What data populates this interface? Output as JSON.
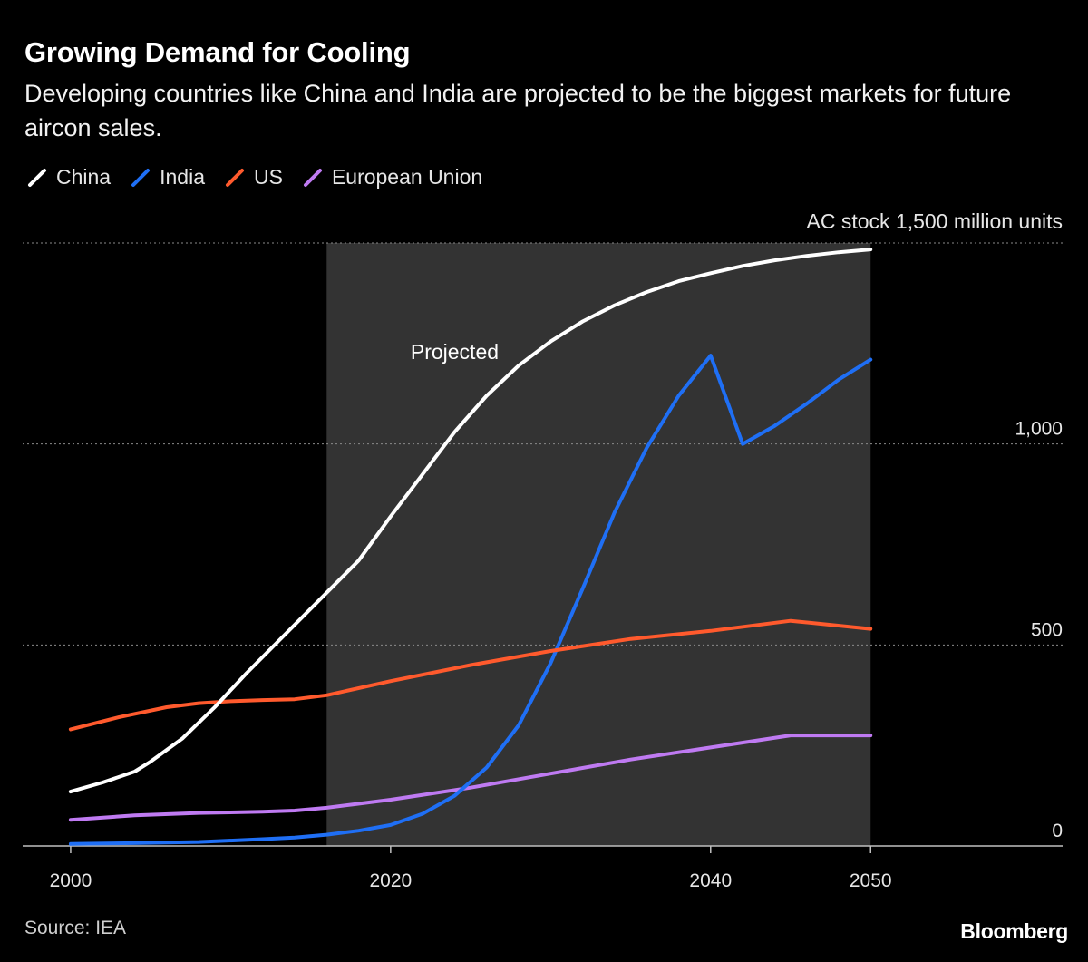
{
  "header": {
    "title": "Growing Demand for Cooling",
    "subtitle": "Developing countries like China and India are projected to be the biggest markets for future aircon sales."
  },
  "footer": {
    "source": "Source: IEA",
    "brand": "Bloomberg"
  },
  "chart_data": {
    "type": "line",
    "title": "Growing Demand for Cooling",
    "subtitle": "Developing countries like China and India are projected to be the biggest markets for future aircon sales.",
    "ylabel": "AC stock 1,500 million units",
    "y_unit_label": "AC stock",
    "y_top_label": "1,500 million units",
    "ylim": [
      0,
      1500
    ],
    "xlim": [
      1997,
      2062
    ],
    "x_ticks": [
      2000,
      2020,
      2040,
      2050
    ],
    "x_tick_labels": [
      "2000",
      "2020",
      "2040",
      "2050"
    ],
    "y_ticks": [
      0,
      500,
      1000
    ],
    "y_tick_labels": [
      "0",
      "500",
      "1,000"
    ],
    "grid": "horizontal dotted",
    "legend_position": "top-left",
    "projected_region": {
      "start": 2016,
      "end": 2050,
      "label": "Projected"
    },
    "series": [
      {
        "name": "China",
        "color": "#ffffff",
        "points": [
          [
            2000,
            135
          ],
          [
            2002,
            158
          ],
          [
            2004,
            185
          ],
          [
            2005,
            210
          ],
          [
            2007,
            268
          ],
          [
            2009,
            345
          ],
          [
            2011,
            430
          ],
          [
            2013,
            510
          ],
          [
            2016,
            630
          ],
          [
            2018,
            710
          ],
          [
            2020,
            820
          ],
          [
            2022,
            925
          ],
          [
            2024,
            1030
          ],
          [
            2026,
            1120
          ],
          [
            2028,
            1195
          ],
          [
            2030,
            1255
          ],
          [
            2032,
            1305
          ],
          [
            2034,
            1345
          ],
          [
            2036,
            1378
          ],
          [
            2038,
            1405
          ],
          [
            2040,
            1425
          ],
          [
            2042,
            1443
          ],
          [
            2044,
            1457
          ],
          [
            2046,
            1468
          ],
          [
            2048,
            1477
          ],
          [
            2050,
            1484
          ]
        ]
      },
      {
        "name": "India",
        "color": "#1f6ff5",
        "points": [
          [
            2000,
            5
          ],
          [
            2004,
            7
          ],
          [
            2008,
            10
          ],
          [
            2012,
            17
          ],
          [
            2014,
            21
          ],
          [
            2016,
            28
          ],
          [
            2018,
            38
          ],
          [
            2020,
            52
          ],
          [
            2022,
            80
          ],
          [
            2024,
            125
          ],
          [
            2026,
            195
          ],
          [
            2028,
            300
          ],
          [
            2030,
            455
          ],
          [
            2032,
            640
          ],
          [
            2034,
            830
          ],
          [
            2036,
            990
          ],
          [
            2038,
            1120
          ],
          [
            2040,
            1220
          ],
          [
            2042,
            1000
          ],
          [
            2044,
            1045
          ],
          [
            2046,
            1100
          ],
          [
            2048,
            1160
          ],
          [
            2050,
            1210
          ]
        ]
      },
      {
        "name": "US",
        "color": "#ff5a2d",
        "points": [
          [
            2000,
            290
          ],
          [
            2003,
            320
          ],
          [
            2006,
            345
          ],
          [
            2008,
            355
          ],
          [
            2010,
            360
          ],
          [
            2012,
            363
          ],
          [
            2014,
            365
          ],
          [
            2016,
            375
          ],
          [
            2020,
            410
          ],
          [
            2025,
            450
          ],
          [
            2030,
            485
          ],
          [
            2035,
            515
          ],
          [
            2040,
            535
          ],
          [
            2045,
            560
          ],
          [
            2050,
            540
          ]
        ]
      },
      {
        "name": "European Union",
        "color": "#bf7af2",
        "points": [
          [
            2000,
            65
          ],
          [
            2004,
            76
          ],
          [
            2008,
            82
          ],
          [
            2012,
            85
          ],
          [
            2014,
            88
          ],
          [
            2016,
            95
          ],
          [
            2020,
            115
          ],
          [
            2025,
            145
          ],
          [
            2030,
            180
          ],
          [
            2035,
            215
          ],
          [
            2040,
            245
          ],
          [
            2045,
            275
          ],
          [
            2050,
            275
          ]
        ]
      }
    ]
  }
}
